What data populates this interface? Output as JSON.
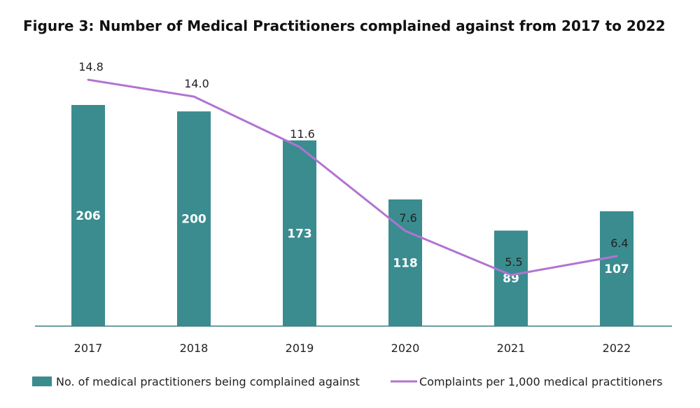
{
  "chart_data": {
    "type": "bar",
    "title": "Figure 3: Number of Medical Practitioners complained against from 2017 to 2022",
    "categories": [
      "2017",
      "2018",
      "2019",
      "2020",
      "2021",
      "2022"
    ],
    "series": [
      {
        "name": "No. of medical practitioners being complained against",
        "type": "bar",
        "values": [
          206,
          200,
          173,
          118,
          89,
          107
        ],
        "color": "#3a8c8f"
      },
      {
        "name": "Complaints per 1,000 medical practitioners",
        "type": "line",
        "values": [
          14.8,
          14.0,
          11.6,
          7.6,
          5.5,
          6.4
        ],
        "labels": [
          "14.8",
          "14.0",
          "11.6",
          "7.6",
          "5.5",
          "6.4"
        ],
        "color": "#b273d1"
      }
    ],
    "legend": "bottom",
    "grid": false
  }
}
